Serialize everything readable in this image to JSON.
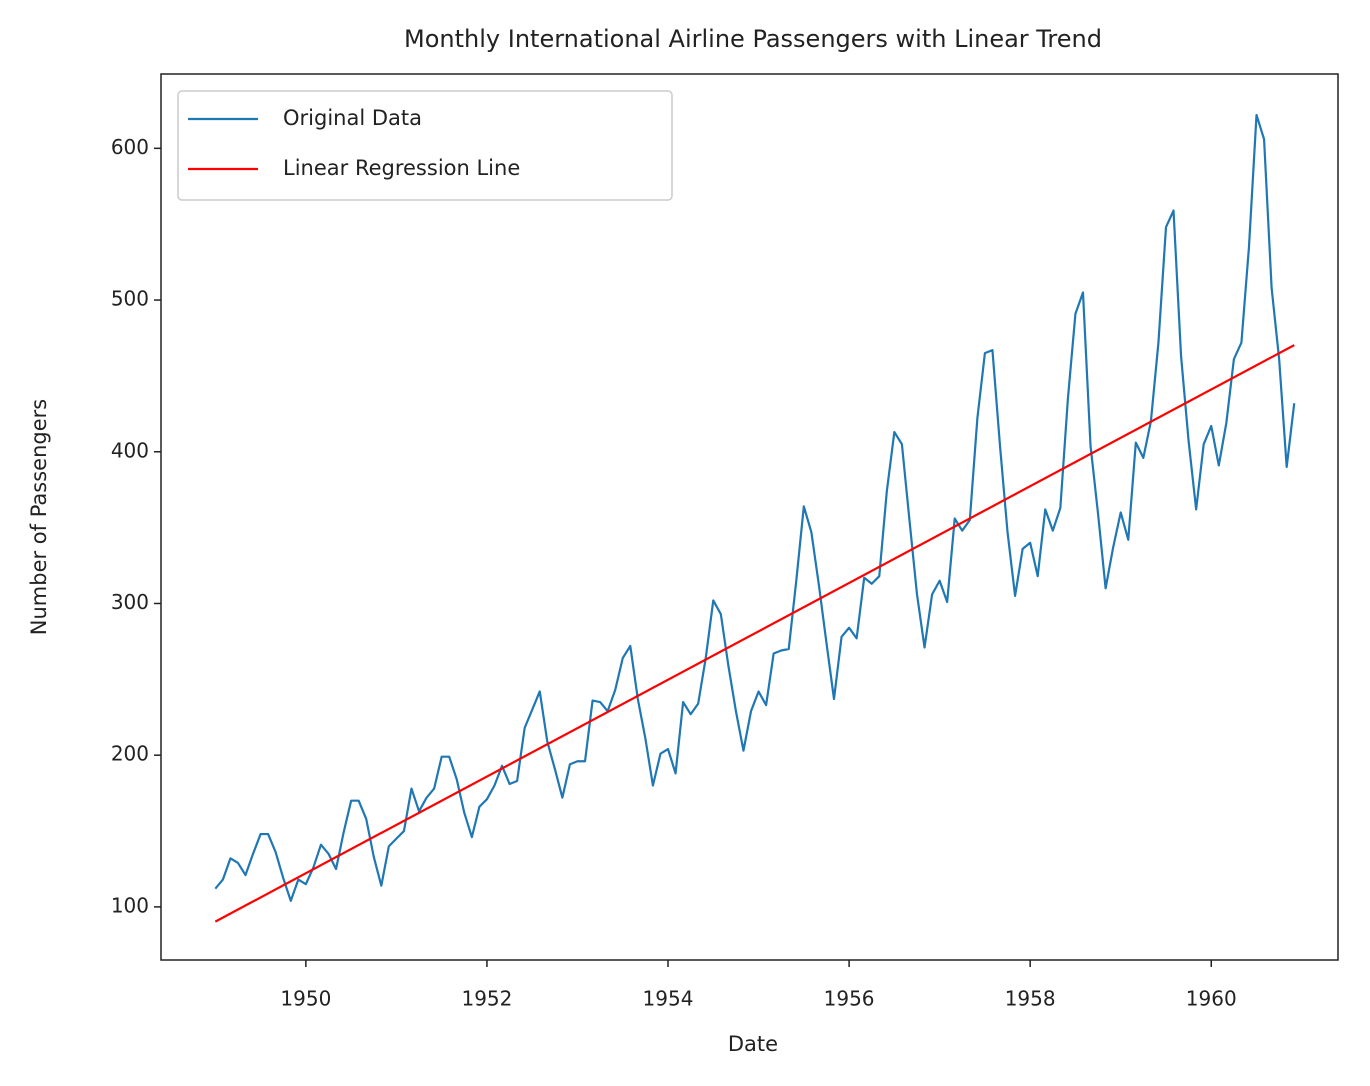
{
  "chart_data": {
    "type": "line",
    "title": "Monthly International Airline Passengers with Linear Trend",
    "x_label": "Date",
    "y_label": "Number of Passengers",
    "xlim": [
      1948.4,
      1961.4
    ],
    "xticks": [
      1950,
      1952,
      1954,
      1956,
      1958,
      1960
    ],
    "ylim": [
      65,
      649
    ],
    "yticks": [
      100,
      200,
      300,
      400,
      500,
      600
    ],
    "grid": false,
    "legend": "upper left",
    "series": [
      {
        "name": "Original Data",
        "color": "#1f77b4",
        "x": [
          1949,
          1949.0833,
          1949.1667,
          1949.25,
          1949.3333,
          1949.4167,
          1949.5,
          1949.5833,
          1949.6667,
          1949.75,
          1949.8333,
          1949.9167,
          1950,
          1950.0833,
          1950.1667,
          1950.25,
          1950.3333,
          1950.4167,
          1950.5,
          1950.5833,
          1950.6667,
          1950.75,
          1950.8333,
          1950.9167,
          1951,
          1951.0833,
          1951.1667,
          1951.25,
          1951.3333,
          1951.4167,
          1951.5,
          1951.5833,
          1951.6667,
          1951.75,
          1951.8333,
          1951.9167,
          1952,
          1952.0833,
          1952.1667,
          1952.25,
          1952.3333,
          1952.4167,
          1952.5,
          1952.5833,
          1952.6667,
          1952.75,
          1952.8333,
          1952.9167,
          1953,
          1953.0833,
          1953.1667,
          1953.25,
          1953.3333,
          1953.4167,
          1953.5,
          1953.5833,
          1953.6667,
          1953.75,
          1953.8333,
          1953.9167,
          1954,
          1954.0833,
          1954.1667,
          1954.25,
          1954.3333,
          1954.4167,
          1954.5,
          1954.5833,
          1954.6667,
          1954.75,
          1954.8333,
          1954.9167,
          1955,
          1955.0833,
          1955.1667,
          1955.25,
          1955.3333,
          1955.4167,
          1955.5,
          1955.5833,
          1955.6667,
          1955.75,
          1955.8333,
          1955.9167,
          1956,
          1956.0833,
          1956.1667,
          1956.25,
          1956.3333,
          1956.4167,
          1956.5,
          1956.5833,
          1956.6667,
          1956.75,
          1956.8333,
          1956.9167,
          1957,
          1957.0833,
          1957.1667,
          1957.25,
          1957.3333,
          1957.4167,
          1957.5,
          1957.5833,
          1957.6667,
          1957.75,
          1957.8333,
          1957.9167,
          1958,
          1958.0833,
          1958.1667,
          1958.25,
          1958.3333,
          1958.4167,
          1958.5,
          1958.5833,
          1958.6667,
          1958.75,
          1958.8333,
          1958.9167,
          1959,
          1959.0833,
          1959.1667,
          1959.25,
          1959.3333,
          1959.4167,
          1959.5,
          1959.5833,
          1959.6667,
          1959.75,
          1959.8333,
          1959.9167,
          1960,
          1960.0833,
          1960.1667,
          1960.25,
          1960.3333,
          1960.4167,
          1960.5,
          1960.5833,
          1960.6667,
          1960.75,
          1960.8333,
          1960.9167
        ],
        "values": [
          112,
          118,
          132,
          129,
          121,
          135,
          148,
          148,
          136,
          119,
          104,
          118,
          115,
          126,
          141,
          135,
          125,
          149,
          170,
          170,
          158,
          133,
          114,
          140,
          145,
          150,
          178,
          163,
          172,
          178,
          199,
          199,
          184,
          162,
          146,
          166,
          171,
          180,
          193,
          181,
          183,
          218,
          230,
          242,
          209,
          191,
          172,
          194,
          196,
          196,
          236,
          235,
          229,
          243,
          264,
          272,
          237,
          211,
          180,
          201,
          204,
          188,
          235,
          227,
          234,
          264,
          302,
          293,
          259,
          229,
          203,
          229,
          242,
          233,
          267,
          269,
          270,
          315,
          364,
          347,
          312,
          274,
          237,
          278,
          284,
          277,
          317,
          313,
          318,
          374,
          413,
          405,
          355,
          306,
          271,
          306,
          315,
          301,
          356,
          348,
          355,
          422,
          465,
          467,
          404,
          347,
          305,
          336,
          340,
          318,
          362,
          348,
          363,
          435,
          491,
          505,
          404,
          359,
          310,
          337,
          360,
          342,
          406,
          396,
          420,
          472,
          548,
          559,
          463,
          407,
          362,
          405,
          417,
          391,
          419,
          461,
          472,
          535,
          622,
          606,
          508,
          461,
          390,
          432
        ]
      },
      {
        "name": "Linear Regression Line",
        "color": "#ff0000",
        "x": [
          1949,
          1960.9167
        ],
        "values": [
          90.3,
          470.3
        ]
      }
    ]
  }
}
